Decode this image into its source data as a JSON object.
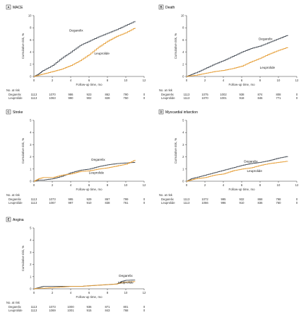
{
  "colors": {
    "degarelix": "#454c55",
    "leuprolide": "#e59a2e",
    "axis": "#333333"
  },
  "chart_data": [
    {
      "type": "line",
      "letter": "A",
      "title": "MACE",
      "xlabel": "Follow-up time, mo",
      "ylabel": "Cumulative risk, %",
      "xlim": [
        0,
        12
      ],
      "ylim": [
        0,
        10
      ],
      "xticks": [
        0,
        2,
        4,
        6,
        8,
        10,
        12
      ],
      "yticks": [
        0,
        2,
        4,
        6,
        8,
        10
      ],
      "series": [
        {
          "name": "Degarelix",
          "x": [
            0,
            0.5,
            1,
            2,
            3,
            4,
            5,
            6,
            7,
            8,
            9,
            10,
            11
          ],
          "y": [
            0,
            0.4,
            1.0,
            1.8,
            3.0,
            4.0,
            5.1,
            5.8,
            6.5,
            7.1,
            7.7,
            8.4,
            9.1
          ]
        },
        {
          "name": "Leuprolide",
          "x": [
            0,
            0.5,
            1,
            2,
            3,
            4,
            5,
            6,
            7,
            8,
            9,
            10,
            11
          ],
          "y": [
            0,
            0.2,
            0.4,
            0.8,
            1.2,
            1.8,
            2.6,
            3.6,
            4.8,
            5.8,
            6.6,
            7.2,
            8.0
          ]
        }
      ],
      "labels": {
        "degarelix_label": "Degarelix",
        "leuprolide_label": "Leuprolide"
      },
      "at_risk": {
        "title": "No. at risk",
        "rows": [
          {
            "name": "Degarelix",
            "values": [
              "1113",
              "1070",
              "986",
              "923",
              "862",
              "790",
              "0"
            ]
          },
          {
            "name": "Leuprolide",
            "values": [
              "1113",
              "1063",
              "990",
              "902",
              "828",
              "750",
              "0"
            ]
          }
        ]
      }
    },
    {
      "type": "line",
      "letter": "B",
      "title": "Death",
      "xlabel": "Follow-up time, mo",
      "ylabel": "Cumulative risk, %",
      "xlim": [
        0,
        12
      ],
      "ylim": [
        0,
        10
      ],
      "xticks": [
        0,
        2,
        4,
        6,
        8,
        10,
        12
      ],
      "yticks": [
        0,
        2,
        4,
        6,
        8,
        10
      ],
      "series": [
        {
          "name": "Degarelix",
          "x": [
            0,
            0.5,
            1,
            2,
            3,
            4,
            5,
            6,
            7,
            8,
            9,
            10,
            11
          ],
          "y": [
            0,
            0.3,
            0.6,
            1.3,
            2.0,
            2.6,
            3.3,
            4.0,
            4.6,
            5.0,
            5.6,
            6.2,
            6.8
          ]
        },
        {
          "name": "Leuprolide",
          "x": [
            0,
            0.5,
            1,
            2,
            3,
            4,
            5,
            6,
            7,
            8,
            9,
            10,
            11
          ],
          "y": [
            0,
            0.1,
            0.2,
            0.5,
            0.8,
            1.0,
            1.3,
            1.7,
            2.4,
            3.0,
            3.7,
            4.3,
            4.8
          ]
        }
      ],
      "labels": {
        "degarelix_label": "Degarelix",
        "leuprolide_label": "Leuprolide"
      },
      "at_risk": {
        "title": "No. at risk",
        "rows": [
          {
            "name": "Degarelix",
            "values": [
              "1113",
              "1075",
              "1002",
              "938",
              "874",
              "808",
              "0"
            ]
          },
          {
            "name": "Leuprolide",
            "values": [
              "1113",
              "1070",
              "1001",
              "918",
              "846",
              "771",
              "0"
            ]
          }
        ]
      }
    },
    {
      "type": "line",
      "letter": "C",
      "title": "Stroke",
      "xlabel": "Follow-up time, mo",
      "ylabel": "Cumulative risk, %",
      "xlim": [
        0,
        12
      ],
      "ylim": [
        0,
        5
      ],
      "xticks": [
        0,
        2,
        4,
        6,
        8,
        10,
        12
      ],
      "yticks": [
        0,
        1,
        2,
        3,
        4,
        5
      ],
      "series": [
        {
          "name": "Degarelix",
          "x": [
            0,
            0.5,
            1,
            2,
            3,
            4,
            5,
            6,
            7,
            8,
            9,
            10,
            11
          ],
          "y": [
            0,
            0.1,
            0.1,
            0.2,
            0.4,
            0.7,
            0.9,
            1.0,
            1.2,
            1.35,
            1.45,
            1.5,
            1.55
          ]
        },
        {
          "name": "Leuprolide",
          "x": [
            0,
            0.5,
            1,
            2,
            3,
            4,
            5,
            6,
            7,
            8,
            9,
            10,
            11
          ],
          "y": [
            0,
            0.2,
            0.3,
            0.3,
            0.5,
            0.6,
            0.8,
            0.85,
            1.0,
            1.1,
            1.25,
            1.4,
            1.75
          ]
        }
      ],
      "labels": {
        "degarelix_label": "Degarelix",
        "leuprolide_label": "Leuprolide"
      },
      "at_risk": {
        "title": "No. at risk",
        "rows": [
          {
            "name": "Degarelix",
            "values": [
              "1113",
              "1073",
              "995",
              "929",
              "867",
              "799",
              "0"
            ]
          },
          {
            "name": "Leuprolide",
            "values": [
              "1113",
              "1067",
              "997",
              "910",
              "838",
              "761",
              "0"
            ]
          }
        ]
      }
    },
    {
      "type": "line",
      "letter": "D",
      "title": "Myocardial infarction",
      "xlabel": "Follow-up time, mo",
      "ylabel": "Cumulative risk, %",
      "xlim": [
        0,
        12
      ],
      "ylim": [
        0,
        5
      ],
      "xticks": [
        0,
        2,
        4,
        6,
        8,
        10,
        12
      ],
      "yticks": [
        0,
        1,
        2,
        3,
        4,
        5
      ],
      "series": [
        {
          "name": "Degarelix",
          "x": [
            0,
            0.5,
            1,
            2,
            3,
            4,
            5,
            6,
            7,
            8,
            9,
            10,
            11
          ],
          "y": [
            0,
            0.2,
            0.3,
            0.5,
            0.7,
            0.9,
            1.1,
            1.3,
            1.45,
            1.55,
            1.7,
            1.9,
            2.05
          ]
        },
        {
          "name": "Leuprolide",
          "x": [
            0,
            0.5,
            1,
            2,
            3,
            4,
            5,
            6,
            7,
            8,
            9,
            10,
            11
          ],
          "y": [
            0,
            0.1,
            0.2,
            0.3,
            0.5,
            0.6,
            0.85,
            1.0,
            1.1,
            1.3,
            1.45,
            1.55,
            1.65
          ]
        }
      ],
      "labels": {
        "degarelix_label": "Degarelix",
        "leuprolide_label": "Leuprolide"
      },
      "at_risk": {
        "title": "No. at risk",
        "rows": [
          {
            "name": "Degarelix",
            "values": [
              "1113",
              "1072",
              "995",
              "932",
              "868",
              "798",
              "0"
            ]
          },
          {
            "name": "Leuprolide",
            "values": [
              "1113",
              "1066",
              "996",
              "910",
              "836",
              "760",
              "0"
            ]
          }
        ]
      }
    },
    {
      "type": "line",
      "letter": "E",
      "title": "Angina",
      "xlabel": "Follow-up time, mo",
      "ylabel": "Cumulative risk, %",
      "xlim": [
        0,
        12
      ],
      "ylim": [
        0,
        5
      ],
      "xticks": [
        0,
        2,
        4,
        6,
        8,
        10,
        12
      ],
      "yticks": [
        0,
        1,
        2,
        3,
        4,
        5
      ],
      "series": [
        {
          "name": "Degarelix",
          "x": [
            0,
            0.5,
            1,
            2,
            3,
            4,
            5,
            6,
            7,
            8,
            9,
            9.5,
            10,
            11
          ],
          "y": [
            0,
            0.1,
            0.2,
            0.2,
            0.2,
            0.2,
            0.2,
            0.25,
            0.3,
            0.35,
            0.4,
            0.6,
            0.7,
            0.72
          ]
        },
        {
          "name": "Leuprolide",
          "x": [
            0,
            0.5,
            1,
            2,
            3,
            4,
            5,
            6,
            7,
            8,
            9,
            9.5,
            10,
            11
          ],
          "y": [
            0,
            0.05,
            0.05,
            0.1,
            0.15,
            0.2,
            0.2,
            0.25,
            0.3,
            0.35,
            0.4,
            0.5,
            0.55,
            0.6
          ]
        }
      ],
      "labels": {
        "degarelix_label": "Degarelix",
        "leuprolide_label": "Leuprolide"
      },
      "at_risk": {
        "title": "No. at risk",
        "rows": [
          {
            "name": "Degarelix",
            "values": [
              "1113",
              "1073",
              "1000",
              "936",
              "871",
              "801",
              "0"
            ]
          },
          {
            "name": "Leuprolide",
            "values": [
              "1113",
              "1069",
              "1001",
              "915",
              "843",
              "768",
              "0"
            ]
          }
        ]
      }
    }
  ]
}
